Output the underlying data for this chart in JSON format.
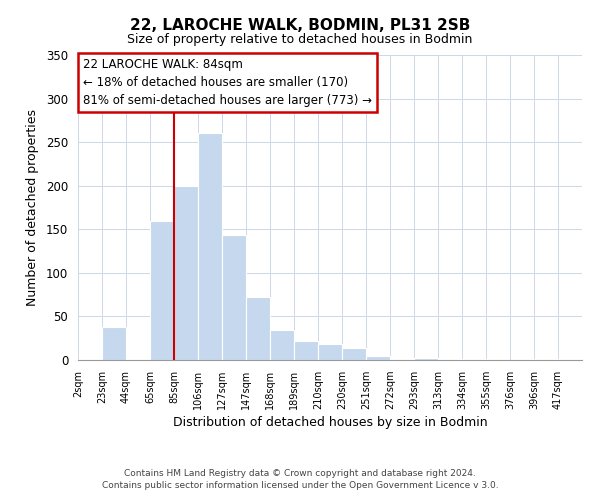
{
  "title": "22, LAROCHE WALK, BODMIN, PL31 2SB",
  "subtitle": "Size of property relative to detached houses in Bodmin",
  "xlabel": "Distribution of detached houses by size in Bodmin",
  "ylabel": "Number of detached properties",
  "bar_color": "#c5d8ed",
  "bin_labels": [
    "2sqm",
    "23sqm",
    "44sqm",
    "65sqm",
    "85sqm",
    "106sqm",
    "127sqm",
    "147sqm",
    "168sqm",
    "189sqm",
    "210sqm",
    "230sqm",
    "251sqm",
    "272sqm",
    "293sqm",
    "313sqm",
    "334sqm",
    "355sqm",
    "376sqm",
    "396sqm",
    "417sqm"
  ],
  "bar_heights": [
    0,
    38,
    0,
    160,
    200,
    260,
    143,
    72,
    34,
    22,
    18,
    14,
    5,
    0,
    2,
    0,
    1,
    0,
    0,
    1,
    0
  ],
  "ylim": [
    0,
    350
  ],
  "yticks": [
    0,
    50,
    100,
    150,
    200,
    250,
    300,
    350
  ],
  "vline_label_index": 4,
  "annotation_title": "22 LAROCHE WALK: 84sqm",
  "annotation_line1": "← 18% of detached houses are smaller (170)",
  "annotation_line2": "81% of semi-detached houses are larger (773) →",
  "vline_color": "#cc0000",
  "annotation_box_facecolor": "#ffffff",
  "annotation_box_edgecolor": "#cc0000",
  "footer1": "Contains HM Land Registry data © Crown copyright and database right 2024.",
  "footer2": "Contains public sector information licensed under the Open Government Licence v 3.0."
}
